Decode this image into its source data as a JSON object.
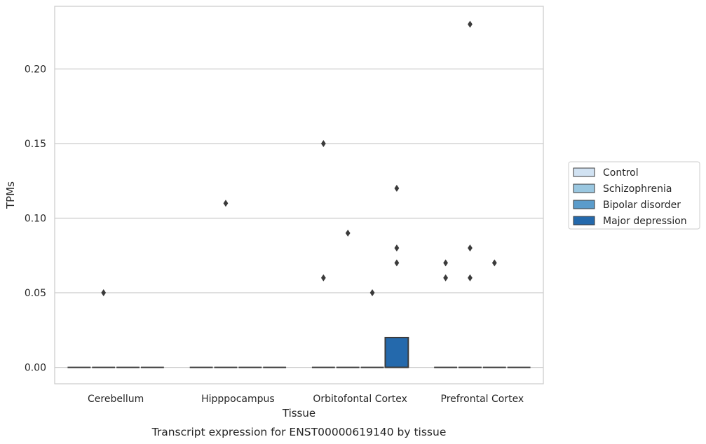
{
  "chart_data": {
    "type": "box",
    "xlabel": "Tissue",
    "ylabel": "TPMs",
    "caption": "Transcript expression for ENST00000619140 by tissue",
    "categories": [
      "Cerebellum",
      "Hipppocampus",
      "Orbitofontal Cortex",
      "Prefrontal Cortex"
    ],
    "ylim": [
      -0.011,
      0.242
    ],
    "yticks": [
      0.0,
      0.05,
      0.1,
      0.15,
      0.2
    ],
    "ytick_labels": [
      "0.00",
      "0.05",
      "0.10",
      "0.15",
      "0.20"
    ],
    "grid": true,
    "legend_position": "right",
    "series": [
      {
        "name": "Control",
        "color": "#d1e2f2",
        "boxes": [
          {
            "category": "Cerebellum",
            "q1": 0,
            "median": 0,
            "q3": 0,
            "outliers": []
          },
          {
            "category": "Hipppocampus",
            "q1": 0,
            "median": 0,
            "q3": 0,
            "outliers": []
          },
          {
            "category": "Orbitofontal Cortex",
            "q1": 0,
            "median": 0,
            "q3": 0,
            "outliers": [
              0.15,
              0.06
            ]
          },
          {
            "category": "Prefrontal Cortex",
            "q1": 0,
            "median": 0,
            "q3": 0,
            "outliers": [
              0.07,
              0.06
            ]
          }
        ]
      },
      {
        "name": "Schizophrenia",
        "color": "#9ac7e0",
        "boxes": [
          {
            "category": "Cerebellum",
            "q1": 0,
            "median": 0,
            "q3": 0,
            "outliers": [
              0.05
            ]
          },
          {
            "category": "Hipppocampus",
            "q1": 0,
            "median": 0,
            "q3": 0,
            "outliers": [
              0.11
            ]
          },
          {
            "category": "Orbitofontal Cortex",
            "q1": 0,
            "median": 0,
            "q3": 0,
            "outliers": [
              0.09
            ]
          },
          {
            "category": "Prefrontal Cortex",
            "q1": 0,
            "median": 0,
            "q3": 0,
            "outliers": [
              0.23,
              0.08,
              0.06
            ]
          }
        ]
      },
      {
        "name": "Bipolar disorder",
        "color": "#5b9ccb",
        "boxes": [
          {
            "category": "Cerebellum",
            "q1": 0,
            "median": 0,
            "q3": 0,
            "outliers": []
          },
          {
            "category": "Hipppocampus",
            "q1": 0,
            "median": 0,
            "q3": 0,
            "outliers": []
          },
          {
            "category": "Orbitofontal Cortex",
            "q1": 0,
            "median": 0,
            "q3": 0,
            "outliers": [
              0.05
            ]
          },
          {
            "category": "Prefrontal Cortex",
            "q1": 0,
            "median": 0,
            "q3": 0,
            "outliers": [
              0.07
            ]
          }
        ]
      },
      {
        "name": "Major depression",
        "color": "#2469ac",
        "boxes": [
          {
            "category": "Cerebellum",
            "q1": 0,
            "median": 0,
            "q3": 0,
            "outliers": []
          },
          {
            "category": "Hipppocampus",
            "q1": 0,
            "median": 0,
            "q3": 0,
            "outliers": []
          },
          {
            "category": "Orbitofontal Cortex",
            "q1": 0,
            "median": 0,
            "q3": 0.02,
            "outliers": [
              0.12,
              0.08,
              0.07
            ]
          },
          {
            "category": "Prefrontal Cortex",
            "q1": 0,
            "median": 0,
            "q3": 0,
            "outliers": []
          }
        ]
      }
    ]
  }
}
